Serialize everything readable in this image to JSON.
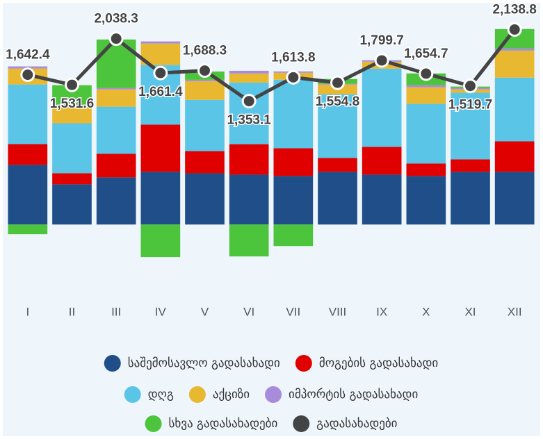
{
  "chart_data": {
    "type": "bar",
    "categories": [
      "I",
      "II",
      "III",
      "IV",
      "V",
      "VI",
      "VII",
      "VIII",
      "IX",
      "X",
      "XI",
      "XII"
    ],
    "ylim": [
      -600,
      2450
    ],
    "series": [
      {
        "name": "საშემოსავლო გადასახადი",
        "color": "#1f4e89",
        "values": [
          654,
          441,
          517,
          578,
          562,
          547,
          532,
          578,
          547,
          532,
          578,
          578
        ]
      },
      {
        "name": "მოგების გადასახადი",
        "color": "#e00000",
        "values": [
          228,
          122,
          258,
          517,
          243,
          334,
          304,
          152,
          304,
          137,
          137,
          334
        ]
      },
      {
        "name": "დღგ",
        "color": "#5bc5e8",
        "values": [
          654,
          547,
          517,
          654,
          562,
          676,
          752,
          699,
          859,
          654,
          730,
          699
        ]
      },
      {
        "name": "აქციზი",
        "color": "#e8b830",
        "values": [
          175,
          190,
          190,
          236,
          205,
          99,
          76,
          106,
          76,
          182,
          38,
          296
        ]
      },
      {
        "name": "იმპორტის გადასახადი",
        "color": "#a98bdc",
        "values": [
          23,
          15,
          15,
          23,
          15,
          30,
          15,
          8,
          15,
          23,
          15,
          23
        ]
      },
      {
        "name": "სხვა გადასახადები",
        "color": "#4cc43c",
        "values": [
          -106,
          213,
          532,
          -357,
          91,
          -350,
          -236,
          53,
          0,
          129,
          15,
          213
        ]
      },
      {
        "name": "გადასახადები",
        "color": "#444444",
        "type": "line",
        "values": [
          1642.4,
          1531.6,
          2038.3,
          1661.4,
          1688.3,
          1353.1,
          1613.8,
          1554.8,
          1799.7,
          1654.7,
          1519.7,
          2138.8
        ],
        "value_labels": [
          "1,642.4",
          "1,531.6",
          "2,038.3",
          "1,661.4",
          "1,688.3",
          "1,353.1",
          "1,613.8",
          "1,554.8",
          "1,799.7",
          "1,654.7",
          "1,519.7",
          "2,138.8"
        ]
      }
    ]
  }
}
